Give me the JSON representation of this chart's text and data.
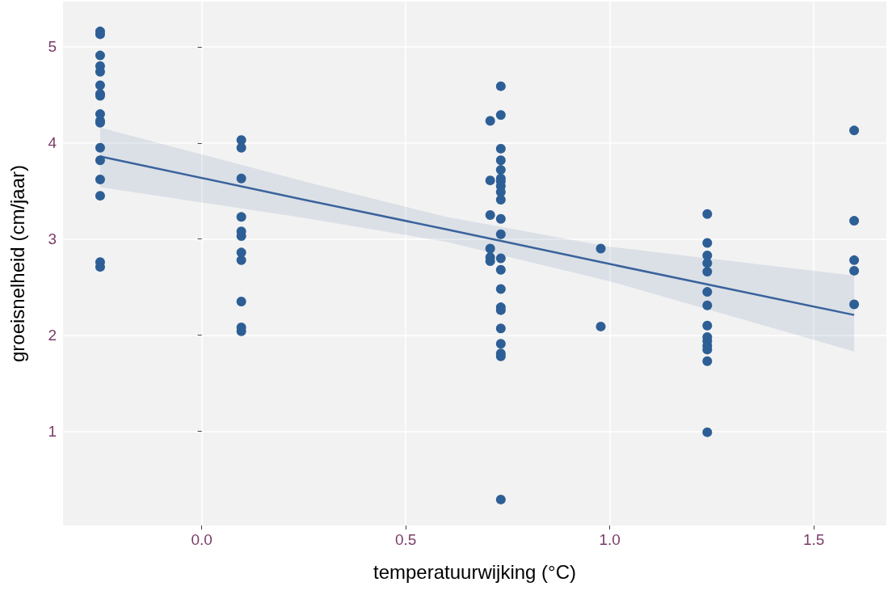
{
  "chart_data": {
    "type": "scatter",
    "xlabel": "temperatuurwijking (°C)",
    "ylabel": "groeisnelheid (cm/jaar)",
    "xlim": [
      -0.34,
      1.678
    ],
    "ylim": [
      0.02,
      5.47
    ],
    "xticks": [
      {
        "value": 0,
        "label": "0.0"
      },
      {
        "value": 0.5,
        "label": "0.5"
      },
      {
        "value": 1,
        "label": "1.0"
      },
      {
        "value": 1.5,
        "label": "1.5"
      }
    ],
    "yticks": [
      1,
      2,
      3,
      4,
      5
    ],
    "grid": true,
    "marker": "circle",
    "series": [
      {
        "color": "#2d5f96",
        "x": [
          -0.249,
          -0.249,
          -0.249,
          -0.249,
          -0.249,
          -0.249,
          -0.249,
          -0.249,
          -0.249,
          -0.249,
          -0.249,
          -0.249,
          -0.249,
          -0.249,
          -0.249,
          -0.249,
          -0.249,
          0.097,
          0.097,
          0.097,
          0.097,
          0.097,
          0.097,
          0.097,
          0.097,
          0.097,
          0.097,
          0.097,
          0.707,
          0.707,
          0.707,
          0.707,
          0.707,
          0.707,
          0.733,
          0.733,
          0.733,
          0.733,
          0.733,
          0.733,
          0.733,
          0.733,
          0.733,
          0.733,
          0.733,
          0.733,
          0.733,
          0.733,
          0.733,
          0.733,
          0.733,
          0.733,
          0.733,
          0.733,
          0.733,
          0.733,
          0.978,
          0.978,
          1.239,
          1.239,
          1.239,
          1.239,
          1.239,
          1.239,
          1.239,
          1.239,
          1.239,
          1.239,
          1.239,
          1.239,
          1.239,
          1.239,
          1.599,
          1.599,
          1.599,
          1.599,
          1.599
        ],
        "values": [
          5.16,
          5.13,
          4.91,
          4.8,
          4.74,
          4.6,
          4.51,
          4.49,
          4.3,
          4.23,
          4.21,
          3.95,
          3.82,
          3.62,
          3.45,
          2.76,
          2.71,
          4.03,
          3.95,
          3.63,
          3.23,
          3.08,
          3.03,
          2.86,
          2.78,
          2.35,
          2.08,
          2.04,
          4.23,
          3.61,
          3.25,
          2.9,
          2.81,
          2.77,
          4.59,
          4.29,
          3.94,
          3.82,
          3.72,
          3.63,
          3.6,
          3.55,
          3.49,
          3.41,
          3.21,
          3.05,
          2.8,
          2.68,
          2.48,
          2.29,
          2.26,
          2.07,
          1.91,
          1.81,
          1.78,
          0.29,
          2.9,
          2.09,
          3.26,
          2.96,
          2.83,
          2.75,
          2.66,
          2.45,
          2.31,
          2.1,
          1.98,
          1.94,
          1.89,
          1.85,
          1.73,
          0.99,
          4.13,
          3.19,
          2.78,
          2.67,
          2.32
        ]
      },
      {
        "type": "line",
        "color": "#3a639b",
        "marker": "none",
        "x": [
          -0.249,
          0.25,
          0.6,
          1.0,
          1.599
        ],
        "values": [
          3.86,
          3.41,
          3.1,
          2.74,
          2.21
        ],
        "lower": [
          3.54,
          3.22,
          2.97,
          2.56,
          1.83
        ],
        "upper": [
          4.16,
          3.6,
          3.23,
          2.92,
          2.62
        ]
      }
    ]
  }
}
